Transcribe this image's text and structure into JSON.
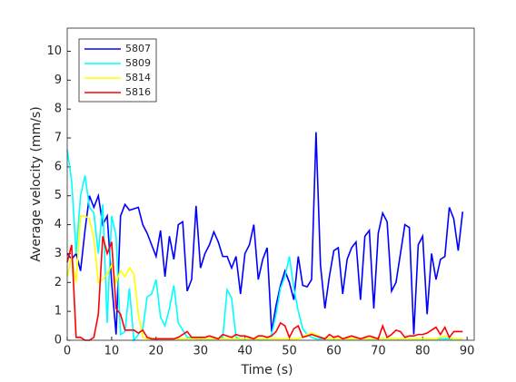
{
  "chart_data": {
    "type": "line",
    "xlabel": "Time (s)",
    "ylabel": "Average velocity (mm/s)",
    "xlim": [
      0,
      91.6
    ],
    "ylim": [
      0,
      10.8
    ],
    "xticks": [
      0,
      10,
      20,
      30,
      40,
      50,
      60,
      70,
      80,
      90
    ],
    "yticks": [
      0,
      1,
      2,
      3,
      4,
      5,
      6,
      7,
      8,
      9,
      10
    ],
    "legend": "top-left",
    "x": [
      0,
      1,
      2,
      3,
      4,
      5,
      6,
      7,
      8,
      9,
      10,
      11,
      12,
      13,
      14,
      15,
      16,
      17,
      18,
      19,
      20,
      21,
      22,
      23,
      24,
      25,
      26,
      27,
      28,
      29,
      30,
      31,
      32,
      33,
      34,
      35,
      36,
      37,
      38,
      39,
      40,
      41,
      42,
      43,
      44,
      45,
      46,
      47,
      48,
      49,
      50,
      51,
      52,
      53,
      54,
      55,
      56,
      57,
      58,
      59,
      60,
      61,
      62,
      63,
      64,
      65,
      66,
      67,
      68,
      69,
      70,
      71,
      72,
      73,
      74,
      75,
      76,
      77,
      78,
      79,
      80,
      81,
      82,
      83,
      84,
      85,
      86,
      87,
      88,
      89
    ],
    "series": [
      {
        "name": "5807",
        "color": "#0000ff",
        "values": [
          3.0,
          2.8,
          3.0,
          2.4,
          3.8,
          5.0,
          4.6,
          5.0,
          4.0,
          4.3,
          2.0,
          0.2,
          4.3,
          4.7,
          4.5,
          4.55,
          4.6,
          4.0,
          3.7,
          3.3,
          2.9,
          3.8,
          2.2,
          3.6,
          2.8,
          4.0,
          4.1,
          1.7,
          2.1,
          4.65,
          2.5,
          3.0,
          3.3,
          3.75,
          3.4,
          2.9,
          2.9,
          2.5,
          2.9,
          1.6,
          3.0,
          3.3,
          4.0,
          2.1,
          2.8,
          3.2,
          0.3,
          1.2,
          1.9,
          2.4,
          2.0,
          1.4,
          2.9,
          1.9,
          1.85,
          2.1,
          7.2,
          2.6,
          1.1,
          2.2,
          3.1,
          3.2,
          1.6,
          2.8,
          3.2,
          3.4,
          1.4,
          3.6,
          3.8,
          1.1,
          3.7,
          4.4,
          4.1,
          1.7,
          2.0,
          3.0,
          4.0,
          3.9,
          0.2,
          3.3,
          3.6,
          0.9,
          3.0,
          2.1,
          2.8,
          2.9,
          4.6,
          4.2,
          3.1,
          4.45
        ]
      },
      {
        "name": "5809",
        "color": "#00ffff",
        "values": [
          6.6,
          5.5,
          3.0,
          5.0,
          5.7,
          4.6,
          4.4,
          3.0,
          4.7,
          0.6,
          4.3,
          3.6,
          0.2,
          0.3,
          1.8,
          0,
          0.2,
          0.4,
          1.5,
          1.6,
          2.1,
          0.8,
          0.5,
          1.1,
          1.9,
          0.6,
          0.35,
          0.1,
          0.1,
          0.05,
          0.05,
          0.05,
          0.05,
          0.05,
          0.05,
          0.1,
          1.75,
          1.45,
          0.1,
          0.05,
          0.05,
          0.05,
          0.05,
          0.05,
          0.05,
          0.05,
          0.2,
          0.9,
          1.8,
          2.2,
          2.9,
          1.8,
          1.0,
          0.4,
          0.2,
          0.1,
          0.05,
          0.05,
          0.05,
          0.05,
          0.05,
          0.05,
          0.05,
          0.05,
          0.05,
          0.05,
          0.05,
          0.05,
          0.05,
          0.05,
          0.05,
          0.05,
          0.05,
          0.05,
          0.05,
          0.05,
          0.05,
          0.05,
          0.05,
          0.05,
          0.05,
          0.05,
          0.05,
          0.05,
          0.05,
          0.05,
          0.05,
          0.05,
          0.05,
          0.05
        ]
      },
      {
        "name": "5814",
        "color": "#ffff00",
        "values": [
          2.2,
          2.9,
          2.0,
          4.3,
          4.3,
          4.2,
          3.5,
          2.0,
          2.1,
          2.3,
          2.6,
          2.0,
          2.4,
          2.2,
          2.5,
          2.3,
          0.9,
          0.1,
          0.05,
          0.05,
          0.05,
          0.05,
          0.05,
          0.05,
          0.05,
          0.05,
          0.05,
          0.05,
          0.05,
          0.05,
          0.05,
          0.05,
          0.05,
          0.05,
          0.05,
          0.05,
          0.05,
          0.05,
          0.05,
          0.05,
          0.05,
          0.05,
          0.05,
          0.05,
          0.05,
          0.05,
          0.05,
          0.05,
          0.05,
          0.05,
          0.05,
          0.05,
          0.05,
          0.1,
          0.2,
          0.25,
          0.2,
          0.1,
          0.05,
          0.05,
          0.05,
          0.05,
          0.05,
          0.05,
          0.05,
          0.05,
          0.05,
          0.05,
          0.05,
          0.05,
          0.05,
          0.05,
          0.05,
          0.05,
          0.05,
          0.05,
          0.05,
          0.05,
          0.05,
          0.05,
          0.05,
          0.05,
          0.05,
          0.05,
          0.1,
          0.15,
          0.1,
          0.05,
          0.05,
          0.05
        ]
      },
      {
        "name": "5816",
        "color": "#ff0000",
        "values": [
          2.7,
          3.3,
          0.1,
          0.1,
          0,
          0,
          0.1,
          0.9,
          3.6,
          3.0,
          3.4,
          1.1,
          0.9,
          0.35,
          0.35,
          0.35,
          0.25,
          0.35,
          0.1,
          0.05,
          0.05,
          0.05,
          0.05,
          0.05,
          0.05,
          0.1,
          0.2,
          0.3,
          0.1,
          0.1,
          0.1,
          0.1,
          0.15,
          0.1,
          0.05,
          0.2,
          0.15,
          0.1,
          0.2,
          0.15,
          0.15,
          0.1,
          0.05,
          0.15,
          0.15,
          0.1,
          0.15,
          0.3,
          0.6,
          0.5,
          0.1,
          0.4,
          0.5,
          0.1,
          0.15,
          0.2,
          0.15,
          0.1,
          0.05,
          0.2,
          0.1,
          0.15,
          0.05,
          0.1,
          0.15,
          0.1,
          0.05,
          0.1,
          0.15,
          0.1,
          0.05,
          0.5,
          0.1,
          0.2,
          0.35,
          0.3,
          0.1,
          0.15,
          0.15,
          0.2,
          0.2,
          0.25,
          0.35,
          0.45,
          0.2,
          0.45,
          0.1,
          0.3,
          0.3,
          0.3
        ]
      }
    ]
  }
}
